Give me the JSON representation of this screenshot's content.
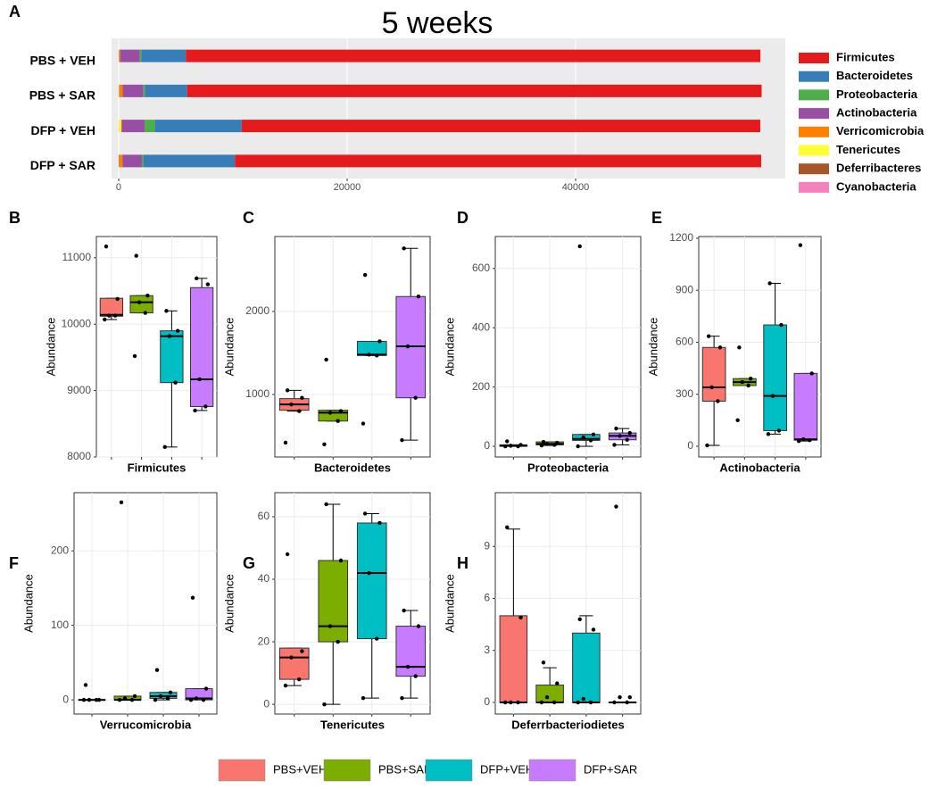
{
  "chart_data": [
    {
      "panel": "A",
      "type": "bar",
      "orientation": "horizontal",
      "stacked": true,
      "title": "5 weeks",
      "categories": [
        "PBS + VEH",
        "PBS + SAR",
        "DFP + VEH",
        "DFP + SAR"
      ],
      "series": [
        {
          "name": "Firmicutes",
          "color": "#e41a1c",
          "values": [
            50300,
            50300,
            45400,
            46070
          ]
        },
        {
          "name": "Bacteroidetes",
          "color": "#377eb8",
          "values": [
            3900,
            3700,
            7600,
            8000
          ]
        },
        {
          "name": "Proteobacteria",
          "color": "#4daf4a",
          "values": [
            150,
            150,
            900,
            150
          ]
        },
        {
          "name": "Actinobacteria",
          "color": "#984ea3",
          "values": [
            1700,
            1800,
            2000,
            1700
          ]
        },
        {
          "name": "Verricomicrobia",
          "color": "#ff7f00",
          "values": [
            100,
            300,
            50,
            300
          ]
        },
        {
          "name": "Tenericutes",
          "color": "#ffff33",
          "values": [
            10,
            20,
            200,
            0
          ]
        },
        {
          "name": "Deferribacteres",
          "color": "#a65628",
          "values": [
            20,
            20,
            20,
            30
          ]
        },
        {
          "name": "Cyanobacteria",
          "color": "#f781bf",
          "values": [
            0,
            0,
            0,
            0
          ]
        }
      ],
      "xlim": [
        -625,
        58360
      ],
      "xticks": [
        0,
        20000,
        40000
      ],
      "legend": "right"
    },
    {
      "panel": "B",
      "type": "box",
      "xlabel": "Firmicutes",
      "ylabel": "Abundance",
      "ylim": [
        8000,
        11320
      ],
      "yticks": [
        8000,
        9000,
        10000,
        11000
      ],
      "grid": true,
      "boxes": [
        {
          "whisker_low": 10070,
          "q1": 10120,
          "median": 10140,
          "q3": 10390,
          "whisker_high": 10390,
          "points": [
            11170,
            10380,
            10130,
            10130,
            10070
          ]
        },
        {
          "whisker_low": 10170,
          "q1": 10170,
          "median": 10330,
          "q3": 10430,
          "whisker_high": 10430,
          "points": [
            11030,
            10430,
            10330,
            10170,
            9520
          ]
        },
        {
          "whisker_low": 8150,
          "q1": 9120,
          "median": 9820,
          "q3": 9900,
          "whisker_high": 10200,
          "points": [
            10200,
            9900,
            9820,
            9120,
            8150
          ]
        },
        {
          "whisker_low": 8700,
          "q1": 8760,
          "median": 9170,
          "q3": 10550,
          "whisker_high": 10690,
          "points": [
            10690,
            10600,
            9170,
            8760,
            8700
          ]
        }
      ]
    },
    {
      "panel": "C",
      "type": "box",
      "xlabel": "Bacteroidetes",
      "ylabel": "Abundance",
      "ylim": [
        247,
        2903
      ],
      "yticks": [
        1000,
        2000
      ],
      "grid": true,
      "boxes": [
        {
          "whisker_low": 800,
          "q1": 810,
          "median": 880,
          "q3": 950,
          "whisker_high": 1050,
          "points": [
            1050,
            960,
            880,
            800,
            420
          ]
        },
        {
          "whisker_low": 680,
          "q1": 680,
          "median": 780,
          "q3": 810,
          "whisker_high": 810,
          "points": [
            1420,
            800,
            780,
            680,
            400
          ]
        },
        {
          "whisker_low": 1470,
          "q1": 1470,
          "median": 1480,
          "q3": 1640,
          "whisker_high": 1640,
          "points": [
            2440,
            1640,
            1480,
            1470,
            650
          ]
        },
        {
          "whisker_low": 450,
          "q1": 960,
          "median": 1580,
          "q3": 2180,
          "whisker_high": 2760,
          "points": [
            2760,
            2180,
            1580,
            960,
            450
          ]
        }
      ]
    },
    {
      "panel": "D",
      "type": "box",
      "xlabel": "Proteobacteria",
      "ylabel": "Abundance",
      "ylim": [
        -36,
        708
      ],
      "yticks": [
        0,
        200,
        400,
        600
      ],
      "grid": true,
      "boxes": [
        {
          "whisker_low": 0,
          "q1": 0,
          "median": 2,
          "q3": 5,
          "whisker_high": 5,
          "points": [
            17,
            5,
            2,
            0,
            0
          ]
        },
        {
          "whisker_low": 3,
          "q1": 5,
          "median": 8,
          "q3": 15,
          "whisker_high": 15,
          "points": [
            15,
            12,
            8,
            5,
            3
          ]
        },
        {
          "whisker_low": 0,
          "q1": 20,
          "median": 25,
          "q3": 40,
          "whisker_high": 40,
          "points": [
            675,
            40,
            30,
            20,
            0
          ]
        },
        {
          "whisker_low": 5,
          "q1": 22,
          "median": 35,
          "q3": 45,
          "whisker_high": 60,
          "points": [
            60,
            45,
            35,
            22,
            5
          ]
        }
      ]
    },
    {
      "panel": "E",
      "type": "box",
      "xlabel": "Actinobacteria",
      "ylabel": "Abundance",
      "ylim": [
        -62,
        1210
      ],
      "yticks": [
        0,
        300,
        600,
        900,
        1200
      ],
      "grid": true,
      "boxes": [
        {
          "whisker_low": 5,
          "q1": 260,
          "median": 340,
          "q3": 570,
          "whisker_high": 635,
          "points": [
            635,
            570,
            340,
            260,
            5
          ]
        },
        {
          "whisker_low": 350,
          "q1": 350,
          "median": 370,
          "q3": 390,
          "whisker_high": 390,
          "points": [
            570,
            390,
            370,
            350,
            150
          ]
        },
        {
          "whisker_low": 70,
          "q1": 90,
          "median": 290,
          "q3": 700,
          "whisker_high": 940,
          "points": [
            940,
            700,
            290,
            90,
            70
          ]
        },
        {
          "whisker_low": 30,
          "q1": 35,
          "median": 40,
          "q3": 420,
          "whisker_high": 420,
          "points": [
            1160,
            420,
            40,
            35,
            30
          ]
        }
      ]
    },
    {
      "panel": "F",
      "type": "box",
      "xlabel": "Verrucomicrobia",
      "ylabel": "Abundance",
      "ylim": [
        -19,
        278
      ],
      "yticks": [
        0,
        100,
        200
      ],
      "grid": true,
      "boxes": [
        {
          "whisker_low": 0,
          "q1": 0,
          "median": 0,
          "q3": 0,
          "whisker_high": 0,
          "points": [
            20,
            0,
            0,
            0,
            0
          ]
        },
        {
          "whisker_low": 0,
          "q1": 0,
          "median": 0,
          "q3": 5,
          "whisker_high": 5,
          "points": [
            265,
            5,
            2,
            0,
            0
          ]
        },
        {
          "whisker_low": 0,
          "q1": 2,
          "median": 5,
          "q3": 10,
          "whisker_high": 10,
          "points": [
            40,
            10,
            5,
            2,
            0
          ]
        },
        {
          "whisker_low": 0,
          "q1": 0,
          "median": 2,
          "q3": 15,
          "whisker_high": 15,
          "points": [
            137,
            15,
            2,
            0,
            0
          ]
        }
      ]
    },
    {
      "panel": "G",
      "type": "box",
      "xlabel": "Tenericutes",
      "ylabel": "Abundance",
      "ylim": [
        -3.1,
        67.7
      ],
      "yticks": [
        0,
        20,
        40,
        60
      ],
      "grid": true,
      "boxes": [
        {
          "whisker_low": 6,
          "q1": 8,
          "median": 15,
          "q3": 18,
          "whisker_high": 18,
          "points": [
            48,
            17,
            15,
            8,
            6
          ]
        },
        {
          "whisker_low": 0,
          "q1": 20,
          "median": 25,
          "q3": 46,
          "whisker_high": 64,
          "points": [
            64,
            46,
            25,
            20,
            0
          ]
        },
        {
          "whisker_low": 2,
          "q1": 21,
          "median": 42,
          "q3": 58,
          "whisker_high": 61,
          "points": [
            61,
            58,
            42,
            21,
            2
          ]
        },
        {
          "whisker_low": 2,
          "q1": 9,
          "median": 12,
          "q3": 25,
          "whisker_high": 30,
          "points": [
            30,
            25,
            12,
            9,
            2
          ]
        }
      ]
    },
    {
      "panel": "H",
      "type": "box",
      "xlabel": "Deferrbacteriodietes",
      "ylabel": "Abundance",
      "ylim": [
        -0.67,
        12.1
      ],
      "yticks": [
        0,
        3,
        6,
        9
      ],
      "grid": true,
      "boxes": [
        {
          "whisker_low": 0,
          "q1": 0,
          "median": 0,
          "q3": 5,
          "whisker_high": 10,
          "points": [
            10.1,
            4.9,
            0,
            0,
            0
          ]
        },
        {
          "whisker_low": 0,
          "q1": 0,
          "median": 0,
          "q3": 1,
          "whisker_high": 2,
          "points": [
            2.3,
            1.1,
            0.3,
            0,
            0
          ]
        },
        {
          "whisker_low": 0,
          "q1": 0,
          "median": 0,
          "q3": 4,
          "whisker_high": 5,
          "points": [
            4.8,
            4.2,
            0.2,
            0,
            0
          ]
        },
        {
          "whisker_low": 0,
          "q1": 0,
          "median": 0,
          "q3": 0,
          "whisker_high": 0,
          "points": [
            11.3,
            0.3,
            0.3,
            0,
            0
          ]
        }
      ]
    }
  ],
  "legend": {
    "names": [
      "PBS+VEH",
      "PBS+SAR",
      "DFP+VEH",
      "DFP+SAR"
    ],
    "colors": [
      "#f8766d",
      "#7cae00",
      "#00bfc4",
      "#c77cff"
    ]
  }
}
